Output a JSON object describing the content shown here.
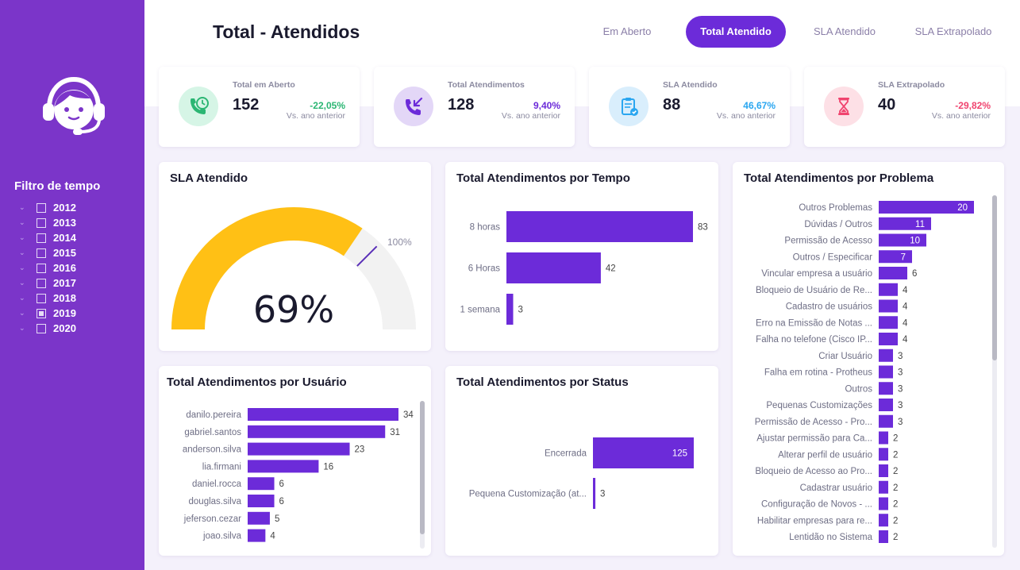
{
  "colors": {
    "accent": "#6c2bd9",
    "sidebar": "#7b35c9",
    "gauge_fill": "#ffc015",
    "gauge_track": "#f2f2f2",
    "positive": "#2bb673",
    "purple_text": "#6c2bd9",
    "blue_text": "#2aa6f0",
    "negative": "#f0446f"
  },
  "header": {
    "title": "Total - Atendidos",
    "tabs": [
      {
        "label": "Em Aberto",
        "active": false
      },
      {
        "label": "Total Atendido",
        "active": true
      },
      {
        "label": "SLA Atendido",
        "active": false
      },
      {
        "label": "SLA Extrapolado",
        "active": false
      }
    ]
  },
  "sidebar": {
    "avatar_icon": "support-agent-icon",
    "filter_title": "Filtro de tempo",
    "years": [
      {
        "label": "2012",
        "checked": false
      },
      {
        "label": "2013",
        "checked": false
      },
      {
        "label": "2014",
        "checked": false
      },
      {
        "label": "2015",
        "checked": false
      },
      {
        "label": "2016",
        "checked": false
      },
      {
        "label": "2017",
        "checked": false
      },
      {
        "label": "2018",
        "checked": false
      },
      {
        "label": "2019",
        "checked": true
      },
      {
        "label": "2020",
        "checked": false
      }
    ]
  },
  "kpis": [
    {
      "label": "Total em Aberto",
      "value": "152",
      "change": "-22,05%",
      "vs": "Vs. ano anterior",
      "icon": "phone-clock-icon",
      "icon_bg": "#d6f5e6",
      "change_color": "#2bb673"
    },
    {
      "label": "Total Atendimentos",
      "value": "128",
      "change": "9,40%",
      "vs": "Vs. ano anterior",
      "icon": "incoming-call-icon",
      "icon_bg": "#e3d7f7",
      "change_color": "#6c2bd9"
    },
    {
      "label": "SLA Atendido",
      "value": "88",
      "change": "46,67%",
      "vs": "Vs. ano anterior",
      "icon": "clipboard-check-icon",
      "icon_bg": "#d9eefc",
      "change_color": "#2aa6f0"
    },
    {
      "label": "SLA Extrapolado",
      "value": "40",
      "change": "-29,82%",
      "vs": "Vs. ano anterior",
      "icon": "hourglass-icon",
      "icon_bg": "#fde0e6",
      "change_color": "#f0446f"
    }
  ],
  "chart_data": [
    {
      "type": "gauge",
      "title": "SLA Atendido",
      "value": 0.69,
      "value_label": "69%",
      "max_label": "100%"
    },
    {
      "type": "bar",
      "orientation": "horizontal",
      "title": "Total Atendimentos por Tempo",
      "categories": [
        "8 horas",
        "6 Horas",
        "1 semana"
      ],
      "values": [
        83,
        42,
        3
      ]
    },
    {
      "type": "bar",
      "orientation": "horizontal",
      "title": "Total Atendimentos por Problema",
      "categories": [
        "Outros Problemas",
        "Dúvidas / Outros",
        "Permissão de Acesso",
        "Outros / Especificar",
        "Vincular empresa a usuário",
        "Bloqueio de Usuário de Re...",
        "Cadastro de usuários",
        "Erro na Emissão de Notas ...",
        "Falha no telefone (Cisco IP...",
        "Criar Usuário",
        "Falha em rotina - Protheus",
        "Outros",
        "Pequenas Customizações",
        "Permissão de Acesso - Pro...",
        "Ajustar permissão para Ca...",
        "Alterar perfil de usuário",
        "Bloqueio de Acesso ao Pro...",
        "Cadastrar usuário",
        "Configuração de Novos - ...",
        "Habilitar empresas para re...",
        "Lentidão no Sistema"
      ],
      "values": [
        20,
        11,
        10,
        7,
        6,
        4,
        4,
        4,
        4,
        3,
        3,
        3,
        3,
        3,
        2,
        2,
        2,
        2,
        2,
        2,
        2
      ]
    },
    {
      "type": "bar",
      "orientation": "horizontal",
      "title": "Total Atendimentos por Usuário",
      "categories": [
        "danilo.pereira",
        "gabriel.santos",
        "anderson.silva",
        "lia.firmani",
        "daniel.rocca",
        "douglas.silva",
        "jeferson.cezar",
        "joao.silva"
      ],
      "values": [
        34,
        31,
        23,
        16,
        6,
        6,
        5,
        4
      ]
    },
    {
      "type": "bar",
      "orientation": "horizontal",
      "title": "Total Atendimentos por Status",
      "categories": [
        "Encerrada",
        "Pequena Customização (at..."
      ],
      "values": [
        125,
        3
      ]
    }
  ]
}
